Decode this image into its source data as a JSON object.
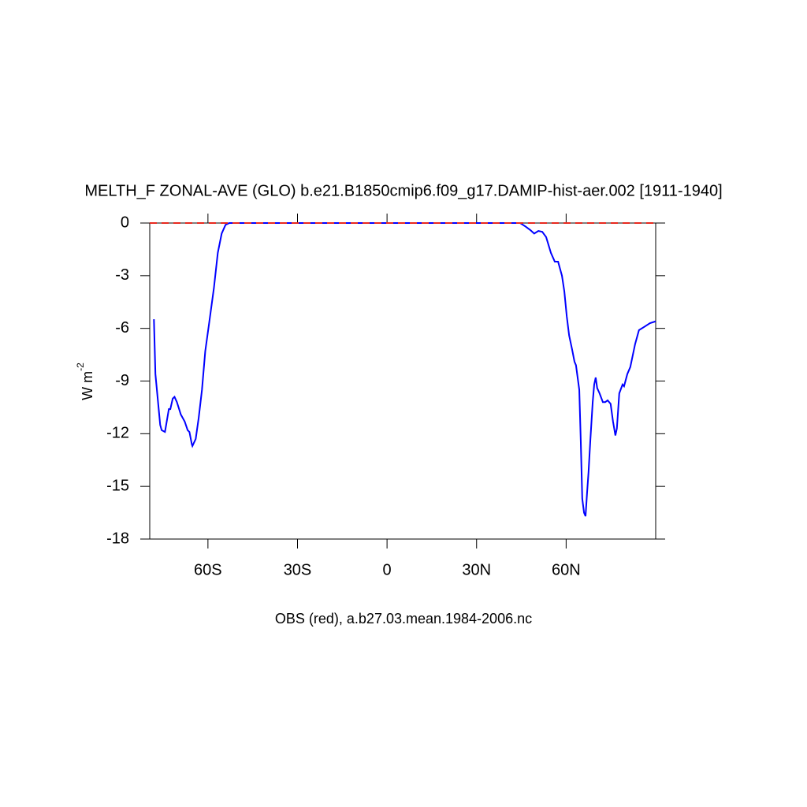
{
  "chart_data": {
    "type": "line",
    "title": "MELTH_F ZONAL-AVE (GLO) b.e21.B1850cmip6.f09_g17.DAMIP-hist-aer.002 [1911-1940]",
    "subtitle": "OBS (red), a.b27.03.mean.1984-2006.nc",
    "ylabel": "W m",
    "ylabel_superscript": "-2",
    "xlim": [
      -79.5,
      90
    ],
    "ylim": [
      -18,
      0
    ],
    "xticks": [
      {
        "value": -60,
        "label": "60S"
      },
      {
        "value": -30,
        "label": "30S"
      },
      0,
      {
        "value": 30,
        "label": "30N"
      },
      {
        "value": 60,
        "label": "60N"
      }
    ],
    "yticks": [
      0,
      -3,
      -6,
      -9,
      -12,
      -15,
      -18
    ],
    "series": [
      {
        "color": "#0000ff",
        "dash": false,
        "x": [
          -78.1,
          -77.6,
          -76.0,
          -75.5,
          -74.4,
          -73.1,
          -72.6,
          -71.8,
          -71.2,
          -70.4,
          -69.1,
          -67.8,
          -66.8,
          -66.2,
          -65.4,
          -65.2,
          -64.1,
          -63.1,
          -62.0,
          -60.9,
          -59.6,
          -58.0,
          -56.7,
          -55.4,
          -54.1,
          -52.8,
          44.6,
          46.4,
          48.0,
          49.3,
          50.7,
          52.0,
          53.3,
          54.9,
          56.2,
          57.3,
          58.6,
          59.4,
          60.2,
          61.0,
          62.0,
          62.8,
          63.3,
          64.4,
          64.9,
          65.4,
          66.0,
          66.5,
          67.0,
          67.5,
          68.1,
          68.9,
          69.4,
          69.9,
          70.4,
          71.2,
          72.3,
          73.1,
          73.9,
          74.9,
          75.7,
          76.5,
          77.0,
          77.8,
          78.9,
          79.4,
          80.5,
          81.5,
          83.1,
          84.4,
          86.3,
          88.1,
          90.0
        ],
        "values": [
          -5.48,
          -8.6,
          -11.5,
          -11.8,
          -11.9,
          -10.6,
          -10.6,
          -10.0,
          -9.9,
          -10.2,
          -10.9,
          -11.3,
          -11.8,
          -11.9,
          -12.6,
          -12.7,
          -12.3,
          -11.1,
          -9.5,
          -7.3,
          -5.7,
          -3.7,
          -1.7,
          -0.6,
          -0.1,
          0,
          0,
          -0.2,
          -0.4,
          -0.6,
          -0.45,
          -0.5,
          -0.8,
          -1.7,
          -2.2,
          -2.2,
          -3.0,
          -3.9,
          -5.3,
          -6.4,
          -7.2,
          -7.9,
          -8.1,
          -9.5,
          -12.4,
          -15.7,
          -16.5,
          -16.7,
          -15.4,
          -14.2,
          -12.4,
          -10.2,
          -9.2,
          -8.8,
          -9.4,
          -9.7,
          -10.2,
          -10.2,
          -10.1,
          -10.3,
          -11.3,
          -12.1,
          -11.7,
          -9.7,
          -9.2,
          -9.3,
          -8.6,
          -8.2,
          -6.9,
          -6.1,
          -5.9,
          -5.7,
          -5.6
        ]
      },
      {
        "color": "#e8281e",
        "dash": true,
        "x": [
          -79.5,
          90
        ],
        "values": [
          0,
          0
        ]
      }
    ]
  }
}
